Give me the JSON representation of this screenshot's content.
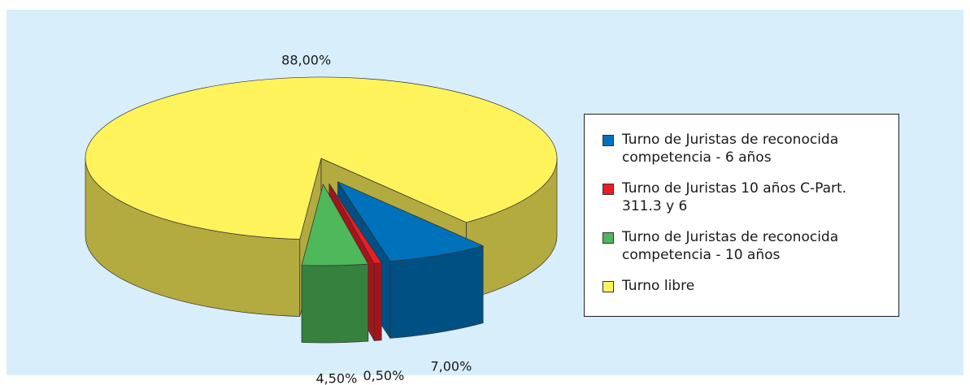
{
  "chart_data": {
    "type": "pie",
    "categories": [
      "Turno de Juristas de reconocida competencia - 6 años",
      "Turno de Juristas 10 años C-Part. 311.3 y 6",
      "Turno de Juristas de reconocida competencia - 10 años",
      "Turno libre"
    ],
    "values": [
      7.0,
      0.5,
      4.5,
      88.0
    ],
    "value_labels": [
      "7,00%",
      "0,50%",
      "4,50%",
      "88,00%"
    ],
    "colors": [
      "#0072bc",
      "#ed1c24",
      "#4fb85a",
      "#fff35c"
    ],
    "legend": "right"
  }
}
